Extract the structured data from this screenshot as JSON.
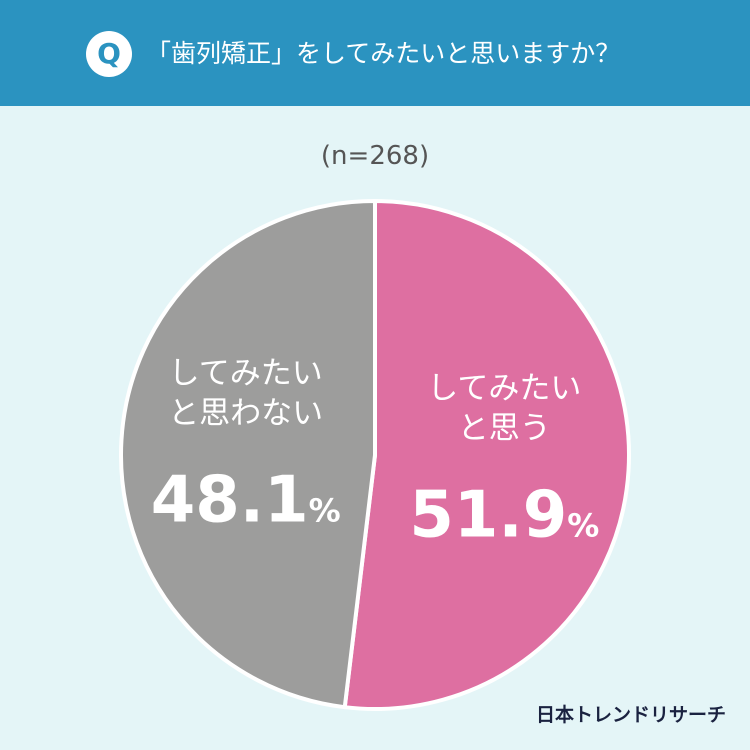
{
  "header": {
    "badge": "Q",
    "question": "「歯列矯正」をしてみたいと思いますか？"
  },
  "sample_size": "(n=268)",
  "brand": "日本トレンドリサーチ",
  "chart_data": {
    "type": "pie",
    "title": "「歯列矯正」をしてみたいと思いますか？",
    "slices": [
      {
        "label_lines": [
          "してみたい",
          "と思う"
        ],
        "value": 51.9,
        "value_text": "51.9",
        "unit": "%",
        "color": "#de6fa1"
      },
      {
        "label_lines": [
          "してみたい",
          "と思わない"
        ],
        "value": 48.1,
        "value_text": "48.1",
        "unit": "%",
        "color": "#9d9d9c"
      }
    ]
  }
}
